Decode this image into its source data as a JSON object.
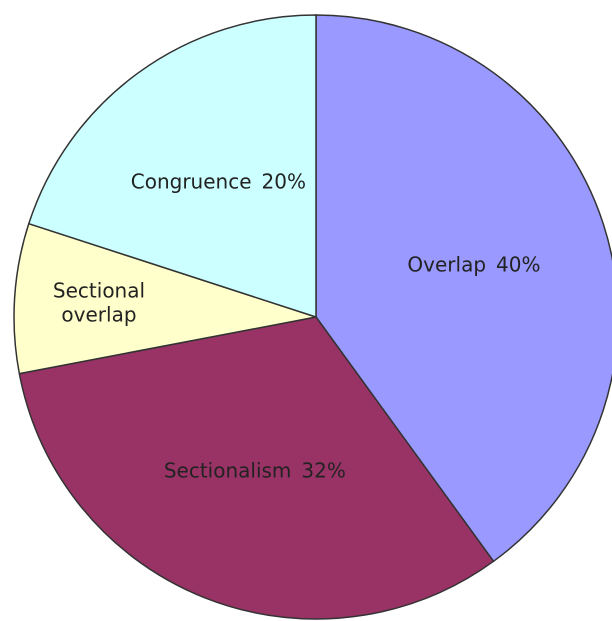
{
  "chart_data": {
    "type": "pie",
    "categories": [
      "Overlap",
      "Sectionalism",
      "Sectional overlap",
      "Congruence"
    ],
    "values": [
      40,
      32,
      8,
      20
    ],
    "value_labels": [
      "40%",
      "32%",
      null,
      "20%"
    ],
    "colors": [
      "#9999ff",
      "#993366",
      "#ffffcc",
      "#ccffff"
    ],
    "start_angle": 0,
    "direction": "clockwise"
  }
}
